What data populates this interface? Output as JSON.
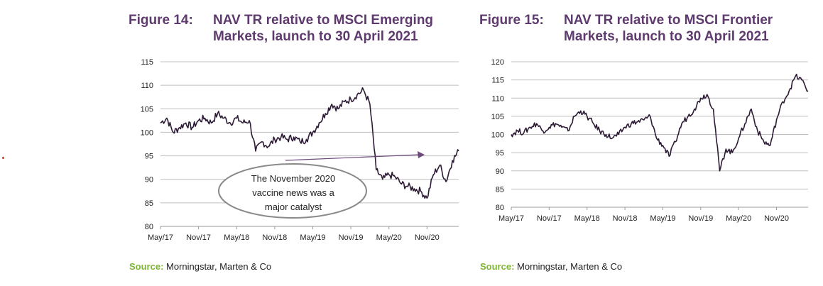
{
  "source_label": "Source:",
  "source_text": "Morningstar, Marten & Co",
  "colors": {
    "title": "#5e3a6e",
    "line": "#2d1b36",
    "source_label": "#7fb437",
    "grid": "#bfbfbf",
    "annotation_arrow": "#6b4a7a"
  },
  "figures": [
    {
      "number": "Figure 14:",
      "title_line1": "NAV TR relative to MSCI Emerging",
      "title_line2": "Markets, launch to 30 April 2021",
      "annotation_line1": "The November 2020",
      "annotation_line2": "vaccine news was a",
      "annotation_line3": "major catalyst"
    },
    {
      "number": "Figure 15:",
      "title_line1": "NAV TR relative to MSCI Frontier",
      "title_line2": "Markets, launch to 30 April 2021"
    }
  ],
  "chart_data": [
    {
      "type": "line",
      "x_tick_labels": [
        "May/17",
        "Nov/17",
        "May/18",
        "Nov/18",
        "May/19",
        "Nov/19",
        "May/20",
        "Nov/20"
      ],
      "y_ticks": [
        80,
        85,
        90,
        95,
        100,
        105,
        110,
        115
      ],
      "ylim": [
        80,
        115
      ],
      "x_range": [
        "2017-05",
        "2021-04"
      ],
      "grid": true,
      "series": [
        {
          "x": [
            "2017-05",
            "2017-06",
            "2017-07",
            "2017-08",
            "2017-09",
            "2017-10",
            "2017-11",
            "2017-12",
            "2018-01",
            "2018-02",
            "2018-03",
            "2018-04",
            "2018-05",
            "2018-06",
            "2018-07",
            "2018-08",
            "2018-09",
            "2018-10",
            "2018-11",
            "2018-12",
            "2019-01",
            "2019-02",
            "2019-03",
            "2019-04",
            "2019-05",
            "2019-06",
            "2019-07",
            "2019-08",
            "2019-09",
            "2019-10",
            "2019-11",
            "2019-12",
            "2020-01",
            "2020-02",
            "2020-03",
            "2020-04",
            "2020-05",
            "2020-06",
            "2020-07",
            "2020-08",
            "2020-09",
            "2020-10",
            "2020-11",
            "2020-12",
            "2021-01",
            "2021-02",
            "2021-03",
            "2021-04"
          ],
          "y": [
            102,
            103,
            100,
            101,
            102,
            101,
            102.5,
            103,
            102,
            104,
            103,
            102,
            103,
            102,
            102.5,
            96,
            98,
            97,
            98.5,
            99,
            98.5,
            99,
            98,
            98.5,
            100,
            102,
            104,
            106,
            105,
            106.5,
            107,
            108,
            109,
            106,
            92,
            90,
            91,
            90.5,
            89,
            88.5,
            88,
            87.5,
            86,
            91,
            93,
            89.5,
            94,
            96
          ]
        }
      ]
    },
    {
      "type": "line",
      "x_tick_labels": [
        "May/17",
        "Nov/17",
        "May/18",
        "Nov/18",
        "May/19",
        "Nov/19",
        "May/20",
        "Nov/20"
      ],
      "y_ticks": [
        80,
        85,
        90,
        95,
        100,
        105,
        110,
        115,
        120
      ],
      "ylim": [
        80,
        120
      ],
      "x_range": [
        "2017-05",
        "2021-04"
      ],
      "grid": true,
      "series": [
        {
          "x": [
            "2017-05",
            "2017-06",
            "2017-07",
            "2017-08",
            "2017-09",
            "2017-10",
            "2017-11",
            "2017-12",
            "2018-01",
            "2018-02",
            "2018-03",
            "2018-04",
            "2018-05",
            "2018-06",
            "2018-07",
            "2018-08",
            "2018-09",
            "2018-10",
            "2018-11",
            "2018-12",
            "2019-01",
            "2019-02",
            "2019-03",
            "2019-04",
            "2019-05",
            "2019-06",
            "2019-07",
            "2019-08",
            "2019-09",
            "2019-10",
            "2019-11",
            "2019-12",
            "2020-01",
            "2020-02",
            "2020-03",
            "2020-04",
            "2020-05",
            "2020-06",
            "2020-07",
            "2020-08",
            "2020-09",
            "2020-10",
            "2020-11",
            "2020-12",
            "2021-01",
            "2021-02",
            "2021-03",
            "2021-04"
          ],
          "y": [
            100,
            101,
            100.5,
            102,
            103,
            101,
            102,
            103,
            102,
            101,
            105,
            106.5,
            105,
            103,
            101,
            100,
            99,
            100,
            102,
            103,
            103.5,
            104,
            105,
            99,
            97,
            94,
            98,
            103,
            105,
            107,
            110,
            111,
            107,
            90,
            96,
            95,
            99,
            103,
            107,
            101,
            98,
            97,
            104,
            109,
            112,
            116,
            115,
            112
          ]
        }
      ]
    }
  ]
}
